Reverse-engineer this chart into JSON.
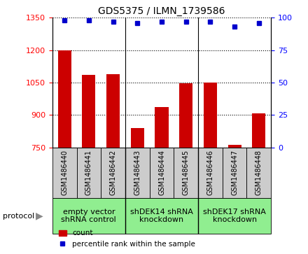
{
  "title": "GDS5375 / ILMN_1739586",
  "samples": [
    "GSM1486440",
    "GSM1486441",
    "GSM1486442",
    "GSM1486443",
    "GSM1486444",
    "GSM1486445",
    "GSM1486446",
    "GSM1486447",
    "GSM1486448"
  ],
  "count_values": [
    1200,
    1085,
    1090,
    840,
    935,
    1048,
    1050,
    760,
    908
  ],
  "percentile_values": [
    98,
    98,
    97,
    96,
    97,
    97,
    97,
    93,
    96
  ],
  "ylim_left": [
    750,
    1350
  ],
  "ylim_right": [
    0,
    100
  ],
  "yticks_left": [
    750,
    900,
    1050,
    1200,
    1350
  ],
  "yticks_right": [
    0,
    25,
    50,
    75,
    100
  ],
  "groups": [
    {
      "label": "empty vector\nshRNA control",
      "start": 0,
      "end": 3,
      "color": "#90EE90"
    },
    {
      "label": "shDEK14 shRNA\nknockdown",
      "start": 3,
      "end": 6,
      "color": "#90EE90"
    },
    {
      "label": "shDEK17 shRNA\nknockdown",
      "start": 6,
      "end": 9,
      "color": "#90EE90"
    }
  ],
  "bar_color": "#CC0000",
  "dot_color": "#0000CC",
  "bar_width": 0.55,
  "background_color": "#ffffff",
  "sample_box_color": "#cccccc",
  "protocol_label": "protocol",
  "legend_count": "count",
  "legend_percentile": "percentile rank within the sample",
  "title_fontsize": 10,
  "axis_fontsize": 8,
  "sample_fontsize": 7,
  "group_fontsize": 8
}
